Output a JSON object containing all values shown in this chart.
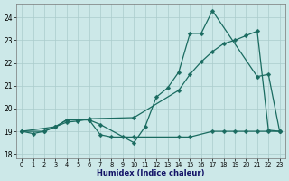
{
  "xlabel": "Humidex (Indice chaleur)",
  "bg_color": "#cce8e8",
  "grid_color": "#aacccc",
  "line_color": "#1a6b60",
  "xlim": [
    -0.5,
    23.5
  ],
  "ylim": [
    17.8,
    24.6
  ],
  "yticks": [
    18,
    19,
    20,
    21,
    22,
    23,
    24
  ],
  "xticks": [
    0,
    1,
    2,
    3,
    4,
    5,
    6,
    7,
    8,
    9,
    10,
    11,
    12,
    13,
    14,
    15,
    16,
    17,
    18,
    19,
    20,
    21,
    22,
    23
  ],
  "line1_x": [
    0,
    2,
    3,
    4,
    5,
    6,
    7,
    10,
    11,
    12,
    13,
    14,
    15,
    16,
    17,
    21,
    22,
    23
  ],
  "line1_y": [
    19.0,
    19.0,
    19.2,
    19.5,
    19.5,
    19.5,
    19.3,
    18.5,
    19.2,
    20.5,
    20.9,
    21.6,
    23.3,
    23.3,
    24.3,
    21.4,
    21.5,
    19.0
  ],
  "line2_x": [
    0,
    1,
    2,
    3,
    4,
    5,
    6,
    7,
    8,
    9,
    10,
    14,
    15,
    17,
    18,
    19,
    20,
    21,
    22,
    23
  ],
  "line2_y": [
    19.0,
    18.9,
    19.0,
    19.2,
    19.5,
    19.5,
    19.5,
    18.85,
    18.75,
    18.75,
    18.75,
    18.75,
    18.75,
    19.0,
    19.0,
    19.0,
    19.0,
    19.0,
    19.0,
    19.0
  ],
  "line3_x": [
    0,
    3,
    4,
    5,
    6,
    10,
    14,
    15,
    16,
    17,
    18,
    19,
    20,
    21,
    22,
    23
  ],
  "line3_y": [
    19.0,
    19.2,
    19.4,
    19.45,
    19.55,
    19.6,
    20.8,
    21.5,
    22.05,
    22.5,
    22.85,
    23.0,
    23.2,
    23.4,
    19.05,
    19.0
  ]
}
